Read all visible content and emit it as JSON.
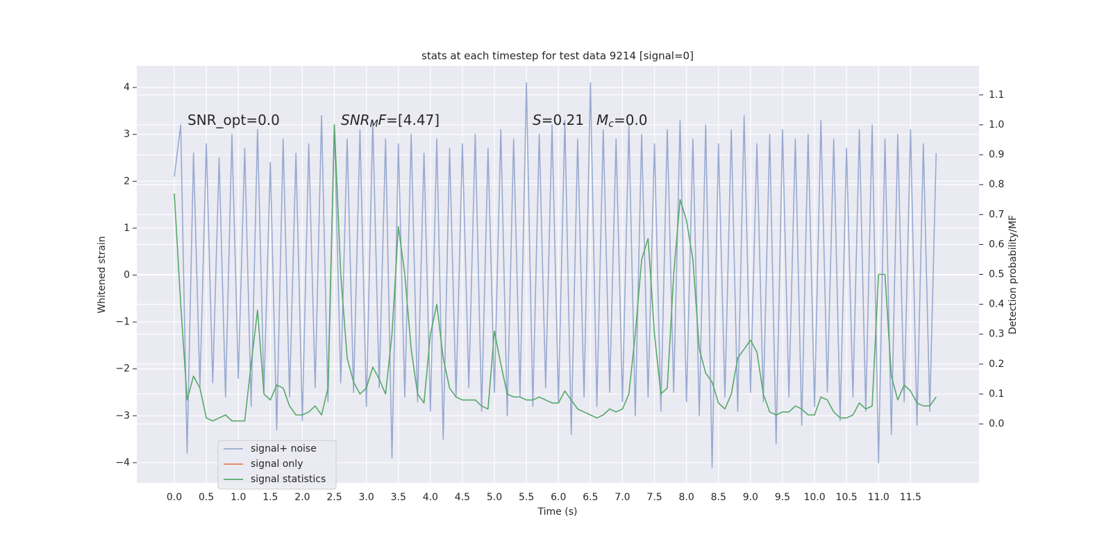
{
  "chart_data": {
    "type": "line",
    "title": "stats at each timestep for test data 9214 [signal=0]",
    "xlabel": "Time (s)",
    "ylabel": "Whitened strain",
    "y2label": "Detection probability/MF",
    "annotations": [
      {
        "parts": [
          {
            "text": "SNR_opt=0.0"
          }
        ]
      },
      {
        "parts": [
          {
            "text": "SNR",
            "italic": true
          },
          {
            "text": "M",
            "italic": true,
            "sub": true
          },
          {
            "text": "F",
            "italic": true
          },
          {
            "text": "=[4.47]"
          }
        ]
      },
      {
        "parts": [
          {
            "text": "S",
            "italic": true
          },
          {
            "text": "=0.21"
          }
        ]
      },
      {
        "parts": [
          {
            "text": "M",
            "italic": true
          },
          {
            "text": "c",
            "italic": true,
            "sub": true
          },
          {
            "text": "=0.0"
          }
        ]
      }
    ],
    "x": [
      0.0,
      0.1,
      0.2,
      0.3,
      0.4,
      0.5,
      0.6,
      0.7,
      0.8,
      0.9,
      1.0,
      1.1,
      1.2,
      1.3,
      1.4,
      1.5,
      1.6,
      1.7,
      1.8,
      1.9,
      2.0,
      2.1,
      2.2,
      2.3,
      2.4,
      2.5,
      2.6,
      2.7,
      2.8,
      2.9,
      3.0,
      3.1,
      3.2,
      3.3,
      3.4,
      3.5,
      3.6,
      3.7,
      3.8,
      3.9,
      4.0,
      4.1,
      4.2,
      4.3,
      4.4,
      4.5,
      4.6,
      4.7,
      4.8,
      4.9,
      5.0,
      5.1,
      5.2,
      5.3,
      5.4,
      5.5,
      5.6,
      5.7,
      5.8,
      5.9,
      6.0,
      6.1,
      6.2,
      6.3,
      6.4,
      6.5,
      6.6,
      6.7,
      6.8,
      6.9,
      7.0,
      7.1,
      7.2,
      7.3,
      7.4,
      7.5,
      7.6,
      7.7,
      7.8,
      7.9,
      8.0,
      8.1,
      8.2,
      8.3,
      8.4,
      8.5,
      8.6,
      8.7,
      8.8,
      8.9,
      9.0,
      9.1,
      9.2,
      9.3,
      9.4,
      9.5,
      9.6,
      9.7,
      9.8,
      9.9,
      10.0,
      10.1,
      10.2,
      10.3,
      10.4,
      10.5,
      10.6,
      10.7,
      10.8,
      10.9,
      11.0,
      11.1,
      11.2,
      11.3,
      11.4,
      11.5,
      11.6,
      11.7,
      11.8,
      11.9
    ],
    "series": [
      {
        "name": "signal+ noise",
        "color": "#97a9cf",
        "values": [
          2.1,
          3.2,
          -3.8,
          2.6,
          -2.4,
          2.8,
          -2.3,
          2.5,
          -2.6,
          3.0,
          -2.2,
          2.7,
          -2.8,
          3.1,
          -2.5,
          2.4,
          -3.3,
          2.9,
          -2.6,
          2.6,
          -3.1,
          2.8,
          -2.4,
          3.4,
          -2.7,
          3.2,
          -2.3,
          2.9,
          -2.5,
          3.1,
          -2.8,
          3.3,
          -2.4,
          2.9,
          -3.9,
          2.8,
          -2.6,
          3.0,
          -2.7,
          2.6,
          -2.9,
          2.9,
          -3.5,
          2.7,
          -2.6,
          2.8,
          -2.4,
          3.0,
          -2.9,
          2.7,
          -2.5,
          3.1,
          -3.0,
          2.9,
          -2.6,
          4.1,
          -2.8,
          3.0,
          -2.4,
          3.2,
          -2.7,
          3.3,
          -3.4,
          2.9,
          -2.6,
          4.1,
          -2.8,
          3.1,
          -2.5,
          2.9,
          -2.7,
          3.2,
          -3.0,
          3.0,
          -2.6,
          2.8,
          -2.9,
          3.1,
          -2.5,
          3.3,
          -2.7,
          2.9,
          -3.0,
          3.2,
          -4.1,
          2.8,
          -2.6,
          3.1,
          -2.9,
          3.4,
          -2.5,
          2.8,
          -2.7,
          3.0,
          -3.6,
          3.1,
          -2.6,
          2.9,
          -3.2,
          3.0,
          -2.8,
          3.3,
          -2.5,
          2.9,
          -3.1,
          2.7,
          -2.6,
          3.1,
          -2.9,
          3.2,
          -4.0,
          2.9,
          -3.4,
          3.0,
          -2.7,
          3.1,
          -3.2,
          2.8,
          -2.9,
          2.6
        ]
      },
      {
        "name": "signal only",
        "color": "#dd8452",
        "values": [
          null,
          null,
          null,
          null,
          null,
          null,
          null,
          null,
          null,
          null,
          null,
          null,
          null,
          null,
          null,
          null,
          null,
          null,
          null,
          null,
          null,
          null,
          null,
          null,
          null,
          null,
          null,
          null,
          null,
          null,
          null,
          null,
          null,
          null,
          null,
          null,
          null,
          null,
          null,
          null,
          null,
          null,
          null,
          null,
          null,
          null,
          null,
          null,
          null,
          null,
          null,
          null,
          null,
          null,
          null,
          null,
          null,
          null,
          null,
          null,
          null,
          null,
          null,
          null,
          null,
          null,
          null,
          null,
          null,
          null,
          null,
          null,
          null,
          null,
          null,
          null,
          null,
          null,
          null,
          null,
          null,
          null,
          null,
          null,
          null,
          null,
          null,
          null,
          null,
          null,
          null,
          null,
          null,
          null,
          null,
          null,
          null,
          null,
          null,
          null,
          null,
          null,
          null,
          null,
          null,
          null,
          null,
          null,
          null,
          null,
          null,
          null,
          null,
          null,
          null,
          null,
          null,
          null,
          null,
          null
        ]
      },
      {
        "name": "signal statistics",
        "color": "#55a868",
        "axis": "y2",
        "values": [
          0.77,
          0.4,
          0.08,
          0.16,
          0.12,
          0.02,
          0.01,
          0.02,
          0.03,
          0.01,
          0.01,
          0.01,
          0.2,
          0.38,
          0.1,
          0.08,
          0.13,
          0.12,
          0.06,
          0.03,
          0.03,
          0.04,
          0.06,
          0.03,
          0.12,
          1.0,
          0.5,
          0.22,
          0.14,
          0.1,
          0.12,
          0.19,
          0.15,
          0.1,
          0.3,
          0.66,
          0.5,
          0.25,
          0.1,
          0.07,
          0.3,
          0.4,
          0.22,
          0.12,
          0.09,
          0.08,
          0.08,
          0.08,
          0.06,
          0.05,
          0.31,
          0.2,
          0.1,
          0.09,
          0.09,
          0.08,
          0.08,
          0.09,
          0.08,
          0.07,
          0.07,
          0.11,
          0.08,
          0.05,
          0.04,
          0.03,
          0.02,
          0.03,
          0.05,
          0.04,
          0.05,
          0.1,
          0.3,
          0.55,
          0.62,
          0.3,
          0.1,
          0.12,
          0.5,
          0.75,
          0.68,
          0.55,
          0.25,
          0.17,
          0.14,
          0.07,
          0.05,
          0.1,
          0.22,
          0.25,
          0.28,
          0.24,
          0.1,
          0.04,
          0.03,
          0.04,
          0.04,
          0.06,
          0.05,
          0.03,
          0.03,
          0.09,
          0.08,
          0.04,
          0.02,
          0.02,
          0.03,
          0.07,
          0.05,
          0.06,
          0.5,
          0.5,
          0.16,
          0.08,
          0.13,
          0.11,
          0.07,
          0.06,
          0.06,
          0.09
        ]
      }
    ],
    "xlim": [
      -0.586,
      12.57
    ],
    "xticks": [
      {
        "value": 0,
        "label": "0.0"
      },
      0.5,
      {
        "value": 1,
        "label": "1.0"
      },
      1.5,
      {
        "value": 2,
        "label": "2.0"
      },
      2.5,
      {
        "value": 3,
        "label": "3.0"
      },
      3.5,
      {
        "value": 4,
        "label": "4.0"
      },
      4.5,
      {
        "value": 5,
        "label": "5.0"
      },
      5.5,
      {
        "value": 6,
        "label": "6.0"
      },
      6.5,
      {
        "value": 7,
        "label": "7.0"
      },
      7.5,
      {
        "value": 8,
        "label": "8.0"
      },
      8.5,
      {
        "value": 9,
        "label": "9.0"
      },
      9.5,
      {
        "value": 10,
        "label": "10.0"
      },
      10.5,
      {
        "value": 11,
        "label": "11.0"
      },
      11.5
    ],
    "ylim": [
      -4.43,
      4.46
    ],
    "yticks": [
      {
        "value": -4,
        "label": "−4"
      },
      {
        "value": -3,
        "label": "−3"
      },
      {
        "value": -2,
        "label": "−2"
      },
      {
        "value": -1,
        "label": "−1"
      },
      0,
      1,
      2,
      3,
      4
    ],
    "y2lim": [
      -0.197,
      1.197
    ],
    "y2ticks": [
      {
        "value": 0,
        "label": "0.0"
      },
      0.1,
      0.2,
      0.3,
      0.4,
      0.5,
      0.6,
      0.7,
      0.8,
      0.9,
      {
        "value": 1,
        "label": "1.0"
      },
      1.1
    ],
    "grid": true,
    "legend": "lower left"
  }
}
